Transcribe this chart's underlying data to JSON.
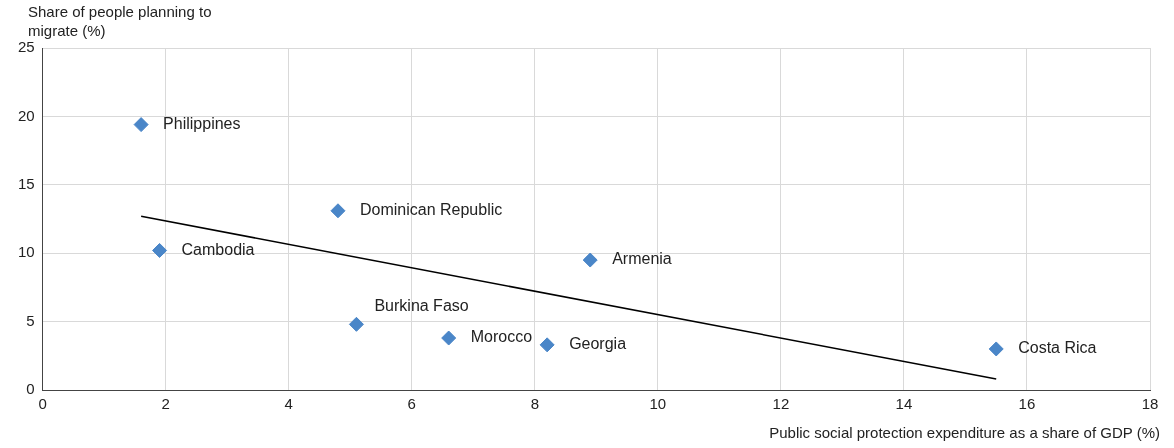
{
  "chart_data": {
    "type": "scatter",
    "xlabel": "Public social protection expenditure as a share of GDP (%)",
    "ylabel": "Share of people planning to migrate (%)",
    "xlim": [
      0,
      18
    ],
    "xticks": [
      0,
      2,
      4,
      6,
      8,
      10,
      12,
      14,
      16,
      18
    ],
    "ylim": [
      0,
      25
    ],
    "yticks": [
      0,
      5,
      10,
      15,
      20,
      25
    ],
    "grid": true,
    "marker": "diamond",
    "series": [
      {
        "color": "#4a86c8",
        "x": [
          1.6,
          1.9,
          4.8,
          5.1,
          6.6,
          8.2,
          8.9,
          15.5
        ],
        "values": [
          19.4,
          10.2,
          13.1,
          4.8,
          3.8,
          3.3,
          9.5,
          3.0
        ]
      },
      {
        "type": "line",
        "color": "#000000",
        "marker": "none",
        "x": [
          1.6,
          15.5
        ],
        "values": [
          12.7,
          0.8
        ]
      }
    ],
    "annotations": [
      {
        "text": "Philippines",
        "x": 1.6,
        "y": 19.4
      },
      {
        "text": "Cambodia",
        "x": 1.9,
        "y": 10.2
      },
      {
        "text": "Dominican Republic",
        "x": 4.8,
        "y": 13.1
      },
      {
        "text": "Burkina Faso",
        "x": 5.1,
        "y": 4.8
      },
      {
        "text": "Morocco",
        "x": 6.6,
        "y": 3.8
      },
      {
        "text": "Georgia",
        "x": 8.2,
        "y": 3.3
      },
      {
        "text": "Armenia",
        "x": 8.9,
        "y": 9.5
      },
      {
        "text": "Costa Rica",
        "x": 15.5,
        "y": 3.0
      }
    ]
  }
}
